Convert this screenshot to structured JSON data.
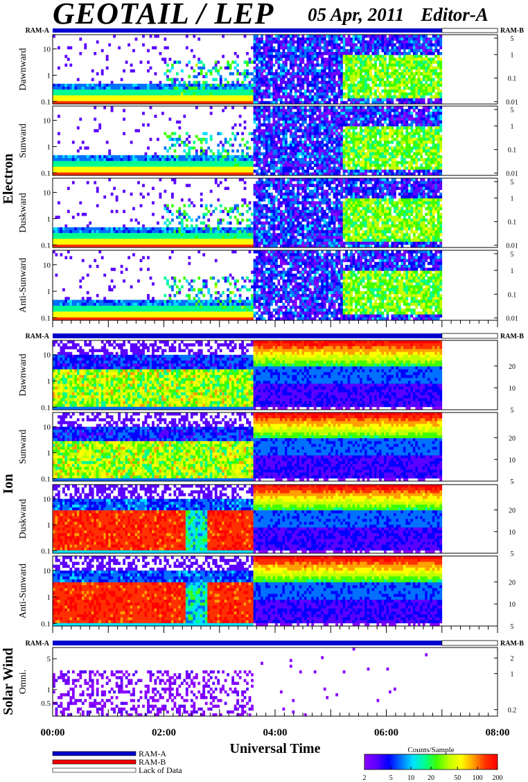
{
  "header": {
    "title": "GEOTAIL / LEP",
    "date": "05 Apr, 2011",
    "editor": "Editor-A"
  },
  "colors": {
    "ram_a": "#0000cc",
    "ram_b": "#ee0000",
    "colorscale": [
      "#8a00ff",
      "#5a00ff",
      "#0000ff",
      "#0070ff",
      "#00e0ff",
      "#00ff90",
      "#40ff00",
      "#c0ff00",
      "#ffff00",
      "#ffa000",
      "#ff3000",
      "#ff0000"
    ]
  },
  "legend": {
    "ram_a": "RAM-A",
    "ram_b": "RAM-B",
    "lack": "Lack of Data"
  },
  "chart_data": {
    "type": "heatmap",
    "title": "GEOTAIL / LEP",
    "xlabel": "Universal Time",
    "x_ticks": [
      "00:00",
      "02:00",
      "04:00",
      "06:00",
      "08:00"
    ],
    "xlim_hours": [
      0,
      8
    ],
    "data_end_hour": 7.0,
    "colorbar": {
      "label": "Counts/Sample",
      "ticks": [
        "2",
        "5",
        "10",
        "20",
        "50",
        "100",
        "200"
      ],
      "range": [
        2,
        200
      ],
      "scale": "log"
    },
    "mode_labels": {
      "left": "RAM-A",
      "right": "RAM-B"
    },
    "groups": [
      {
        "name": "Electron",
        "panels": [
          {
            "label": "Dawnward",
            "left_ticks": [
              "10",
              "1",
              "0.1"
            ],
            "left_range": [
              0.08,
              35
            ],
            "right_ticks": [
              "5",
              "1",
              "0.1",
              "0.01"
            ],
            "right_range": [
              0.008,
              7
            ],
            "scale": "log"
          },
          {
            "label": "Sunward",
            "left_ticks": [
              "10",
              "1",
              "0.1"
            ],
            "left_range": [
              0.08,
              35
            ],
            "right_ticks": [
              "5",
              "1",
              "0.1",
              "0.01"
            ],
            "right_range": [
              0.008,
              7
            ],
            "scale": "log"
          },
          {
            "label": "Duskward",
            "left_ticks": [
              "10",
              "1",
              "0.1"
            ],
            "left_range": [
              0.08,
              35
            ],
            "right_ticks": [
              "5",
              "1",
              "0.1",
              "0.01"
            ],
            "right_range": [
              0.008,
              7
            ],
            "scale": "log"
          },
          {
            "label": "Anti-Sunward",
            "left_ticks": [
              "10",
              "1",
              "0.1"
            ],
            "left_range": [
              0.08,
              35
            ],
            "right_ticks": [
              "5",
              "1",
              "0.1",
              "0.01"
            ],
            "right_range": [
              0.008,
              7
            ],
            "scale": "log"
          }
        ]
      },
      {
        "name": "Ion",
        "panels": [
          {
            "label": "Dawnward",
            "left_ticks": [
              "10",
              "1",
              "0.1"
            ],
            "left_range": [
              0.08,
              35
            ],
            "right_ticks": [
              "20",
              "10",
              "5"
            ],
            "right_range": [
              5,
              45
            ],
            "scale": "log"
          },
          {
            "label": "Sunward",
            "left_ticks": [
              "10",
              "1",
              "0.1"
            ],
            "left_range": [
              0.08,
              35
            ],
            "right_ticks": [
              "20",
              "10",
              "5"
            ],
            "right_range": [
              5,
              45
            ],
            "scale": "log"
          },
          {
            "label": "Duskward",
            "left_ticks": [
              "10",
              "1",
              "0.1"
            ],
            "left_range": [
              0.08,
              35
            ],
            "right_ticks": [
              "20",
              "10",
              "5"
            ],
            "right_range": [
              5,
              45
            ],
            "scale": "log"
          },
          {
            "label": "Anti-Sunward",
            "left_ticks": [
              "10",
              "1",
              "0.1"
            ],
            "left_range": [
              0.08,
              35
            ],
            "right_ticks": [
              "20",
              "10",
              "5"
            ],
            "right_range": [
              5,
              45
            ],
            "scale": "log"
          }
        ]
      },
      {
        "name": "Solar Wind",
        "panels": [
          {
            "label": "Omni.",
            "left_ticks": [
              "5",
              "1",
              "0.5"
            ],
            "left_range": [
              0.25,
              9
            ],
            "right_ticks": [
              "2",
              "1",
              "0.2"
            ],
            "right_range": [
              0.15,
              3.2
            ],
            "scale": "log"
          }
        ]
      }
    ]
  }
}
